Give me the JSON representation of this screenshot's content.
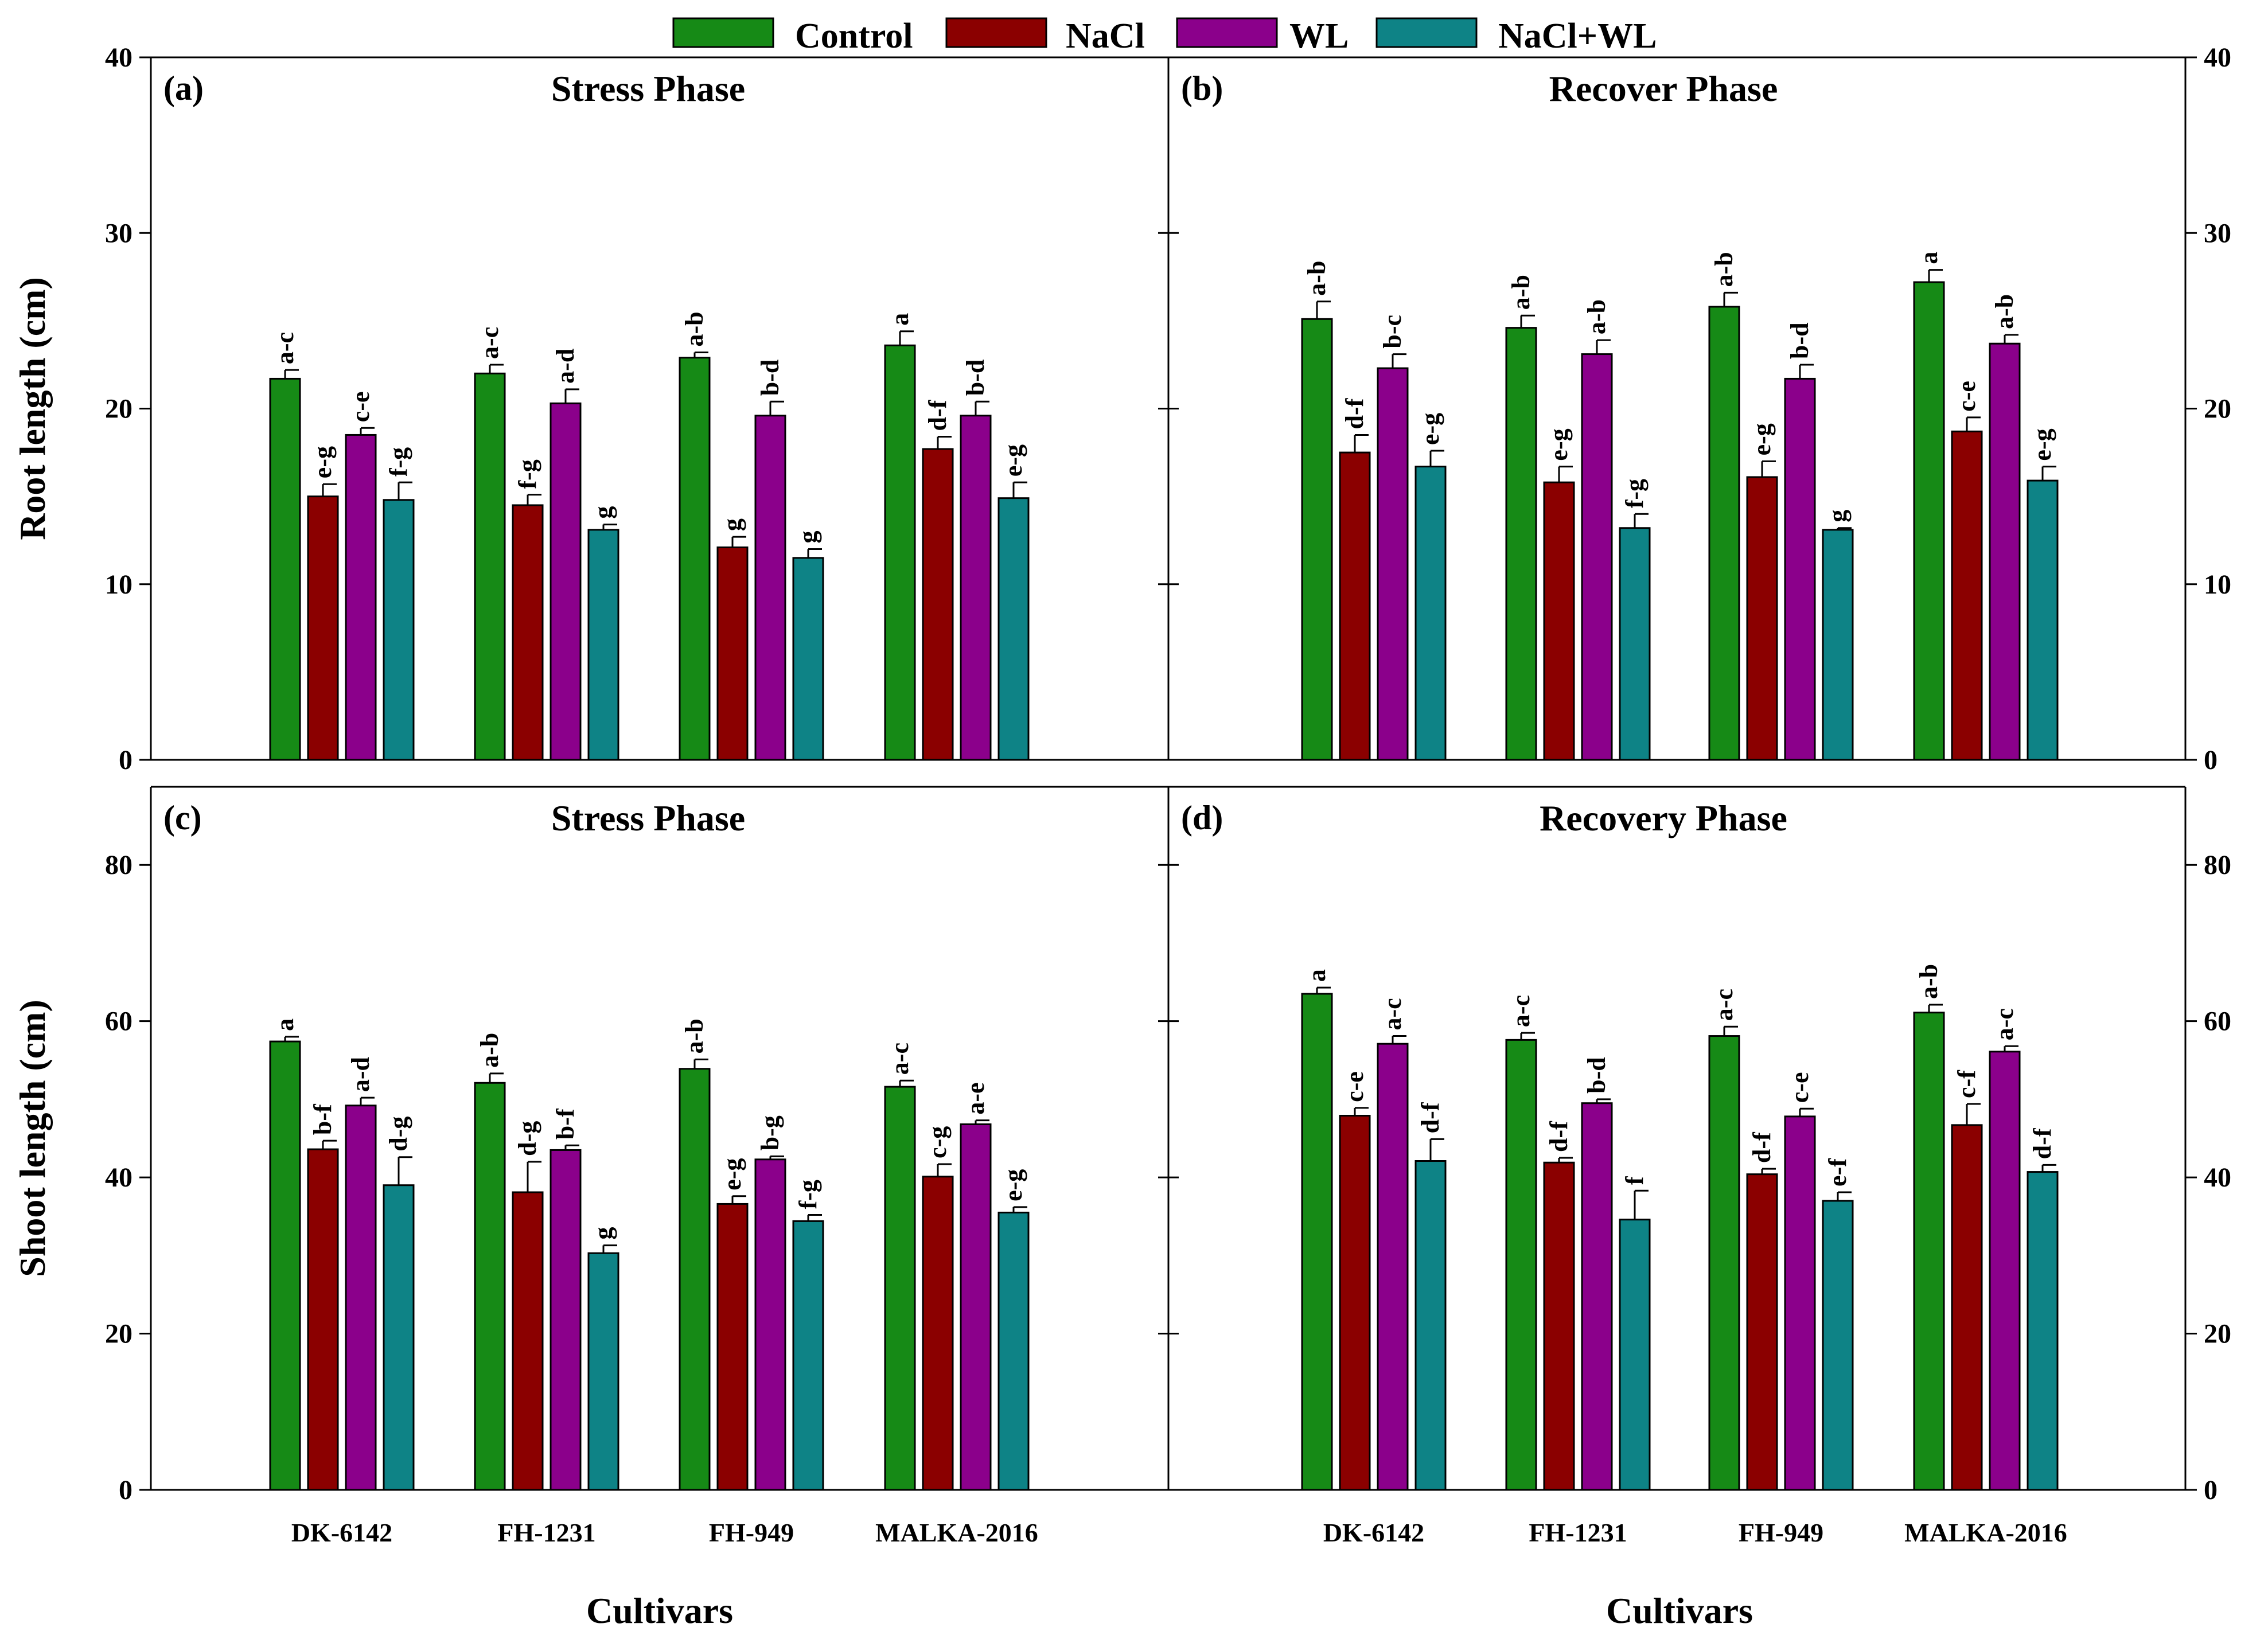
{
  "chart_data": {
    "type": "bar",
    "legend": {
      "position": "top-center",
      "entries": [
        "Control",
        "NaCl",
        "WL",
        "NaCl+WL"
      ]
    },
    "series_colors": {
      "Control": "#168a16",
      "NaCl": "#8b0000",
      "WL": "#8b008b",
      "NaCl+WL": "#0e8386"
    },
    "categories": [
      "DK-6142",
      "FH-1231",
      "FH-949",
      "MALKA-2016"
    ],
    "xlabel": "Cultivars",
    "panels": [
      {
        "id": "a",
        "letter": "(a)",
        "title": "Stress Phase",
        "ylabel": "Root length (cm)",
        "ylim": [
          0,
          40
        ],
        "yticks": [
          0,
          10,
          20,
          30,
          40
        ],
        "series": [
          {
            "name": "Control",
            "values": [
              21.7,
              22.0,
              22.9,
              23.6
            ],
            "errors": [
              0.5,
              0.5,
              0.3,
              0.8
            ],
            "labels": [
              "a-c",
              "a-c",
              "a-b",
              "a"
            ]
          },
          {
            "name": "NaCl",
            "values": [
              15.0,
              14.5,
              12.1,
              17.7
            ],
            "errors": [
              0.7,
              0.6,
              0.6,
              0.7
            ],
            "labels": [
              "e-g",
              "f-g",
              "g",
              "d-f"
            ]
          },
          {
            "name": "WL",
            "values": [
              18.5,
              20.3,
              19.6,
              19.6
            ],
            "errors": [
              0.4,
              0.8,
              0.8,
              0.8
            ],
            "labels": [
              "c-e",
              "a-d",
              "b-d",
              "b-d"
            ]
          },
          {
            "name": "NaCl+WL",
            "values": [
              14.8,
              13.1,
              11.5,
              14.9
            ],
            "errors": [
              1.0,
              0.3,
              0.5,
              0.9
            ],
            "labels": [
              "f-g",
              "g",
              "g",
              "e-g"
            ]
          }
        ]
      },
      {
        "id": "b",
        "letter": "(b)",
        "title": "Recover Phase",
        "ylabel": "",
        "ylim": [
          0,
          40
        ],
        "yticks": [
          0,
          10,
          20,
          30,
          40
        ],
        "series": [
          {
            "name": "Control",
            "values": [
              25.1,
              24.6,
              25.8,
              27.2
            ],
            "errors": [
              1.0,
              0.7,
              0.8,
              0.7
            ],
            "labels": [
              "a-b",
              "a-b",
              "a-b",
              "a"
            ]
          },
          {
            "name": "NaCl",
            "values": [
              17.5,
              15.8,
              16.1,
              18.7
            ],
            "errors": [
              1.0,
              0.9,
              0.9,
              0.8
            ],
            "labels": [
              "d-f",
              "e-g",
              "e-g",
              "c-e"
            ]
          },
          {
            "name": "WL",
            "values": [
              22.3,
              23.1,
              21.7,
              23.7
            ],
            "errors": [
              0.8,
              0.8,
              0.8,
              0.5
            ],
            "labels": [
              "b-c",
              "a-b",
              "b-d",
              "a-b"
            ]
          },
          {
            "name": "NaCl+WL",
            "values": [
              16.7,
              13.2,
              13.1,
              15.9
            ],
            "errors": [
              0.9,
              0.8,
              0.1,
              0.8
            ],
            "labels": [
              "e-g",
              "f-g",
              "g",
              "e-g"
            ]
          }
        ]
      },
      {
        "id": "c",
        "letter": "(c)",
        "title": "Stress Phase",
        "ylabel": "Shoot length (cm)",
        "ylim": [
          0,
          90
        ],
        "yticks": [
          0,
          20,
          40,
          60,
          80
        ],
        "series": [
          {
            "name": "Control",
            "values": [
              57.4,
              52.1,
              53.9,
              51.6
            ],
            "errors": [
              0.6,
              1.2,
              1.2,
              0.8
            ],
            "labels": [
              "a",
              "a-b",
              "a-b",
              "a-c"
            ]
          },
          {
            "name": "NaCl",
            "values": [
              43.6,
              38.1,
              36.6,
              40.1
            ],
            "errors": [
              1.1,
              3.9,
              1.0,
              1.6
            ],
            "labels": [
              "b-f",
              "d-g",
              "e-g",
              "c-g"
            ]
          },
          {
            "name": "WL",
            "values": [
              49.2,
              43.5,
              42.3,
              46.8
            ],
            "errors": [
              1.0,
              0.6,
              0.4,
              0.5
            ],
            "labels": [
              "a-d",
              "b-f",
              "b-g",
              "a-e"
            ]
          },
          {
            "name": "NaCl+WL",
            "values": [
              39.0,
              30.3,
              34.4,
              35.5
            ],
            "errors": [
              3.6,
              1.0,
              0.8,
              0.7
            ],
            "labels": [
              "d-g",
              "g",
              "f-g",
              "e-g"
            ]
          }
        ]
      },
      {
        "id": "d",
        "letter": "(d)",
        "title": "Recovery Phase",
        "ylabel": "",
        "ylim": [
          0,
          90
        ],
        "yticks": [
          0,
          20,
          40,
          60,
          80
        ],
        "series": [
          {
            "name": "Control",
            "values": [
              63.5,
              57.6,
              58.1,
              61.1
            ],
            "errors": [
              0.8,
              0.9,
              1.2,
              1.0
            ],
            "labels": [
              "a",
              "a-c",
              "a-c",
              "a-b"
            ]
          },
          {
            "name": "NaCl",
            "values": [
              47.9,
              41.9,
              40.4,
              46.7
            ],
            "errors": [
              1.0,
              0.6,
              0.7,
              2.7
            ],
            "labels": [
              "c-e",
              "d-f",
              "d-f",
              "c-f"
            ]
          },
          {
            "name": "WL",
            "values": [
              57.1,
              49.5,
              47.8,
              56.1
            ],
            "errors": [
              1.0,
              0.5,
              1.0,
              0.7
            ],
            "labels": [
              "a-c",
              "b-d",
              "c-e",
              "a-c"
            ]
          },
          {
            "name": "NaCl+WL",
            "values": [
              42.1,
              34.6,
              37.0,
              40.7
            ],
            "errors": [
              2.8,
              3.7,
              1.1,
              0.9
            ],
            "labels": [
              "d-f",
              "f",
              "e-f",
              "d-f"
            ]
          }
        ]
      }
    ]
  }
}
